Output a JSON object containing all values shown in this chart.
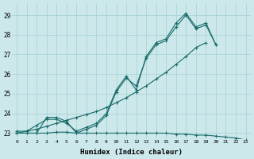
{
  "xlabel": "Humidex (Indice chaleur)",
  "bg_color": "#cce8ea",
  "grid_color": "#aad4d6",
  "line_color": "#1a6b6b",
  "xlim": [
    -0.5,
    23.5
  ],
  "ylim": [
    22.7,
    29.6
  ],
  "yticks": [
    23,
    24,
    25,
    26,
    27,
    28,
    29
  ],
  "xticks": [
    0,
    1,
    2,
    3,
    4,
    5,
    6,
    7,
    8,
    9,
    10,
    11,
    12,
    13,
    14,
    15,
    16,
    17,
    18,
    19,
    20,
    21,
    22,
    23
  ],
  "line1_y": [
    23.1,
    23.1,
    23.4,
    23.7,
    23.7,
    23.5,
    23.1,
    23.3,
    23.5,
    24.0,
    25.2,
    25.9,
    25.2,
    26.9,
    27.6,
    27.8,
    28.6,
    29.1,
    28.4,
    28.6,
    27.5,
    null,
    null,
    null
  ],
  "line2_y": [
    23.0,
    23.0,
    23.0,
    23.8,
    23.8,
    23.6,
    23.0,
    23.2,
    23.4,
    23.9,
    25.1,
    25.8,
    25.4,
    26.8,
    27.5,
    27.7,
    28.4,
    29.0,
    28.3,
    28.5,
    27.5,
    null,
    null,
    null
  ],
  "line3_y": [
    23.0,
    23.1,
    23.2,
    23.35,
    23.5,
    23.65,
    23.8,
    23.95,
    24.1,
    24.3,
    24.55,
    24.8,
    25.1,
    25.4,
    25.75,
    26.1,
    26.5,
    26.9,
    27.35,
    27.6,
    null,
    null,
    null,
    null
  ],
  "line4_y": [
    23.0,
    23.0,
    23.0,
    23.0,
    23.05,
    23.05,
    23.0,
    23.0,
    23.0,
    23.0,
    23.0,
    23.0,
    23.0,
    23.0,
    23.0,
    23.0,
    22.95,
    22.95,
    22.9,
    22.9,
    22.85,
    22.8,
    22.75,
    22.65
  ]
}
